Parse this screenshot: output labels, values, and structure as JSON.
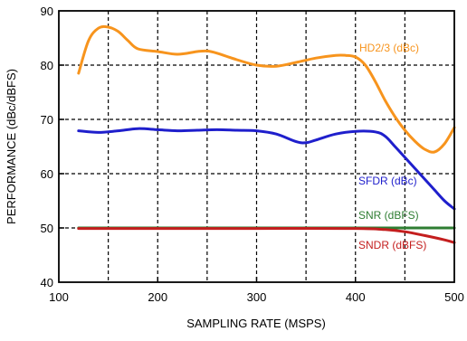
{
  "chart_data": {
    "type": "line",
    "title": "",
    "xlabel": "SAMPLING RATE (MSPS)",
    "ylabel": "PERFORMANCE (dBc/dBFS)",
    "xlim": [
      100,
      500
    ],
    "ylim": [
      40,
      90
    ],
    "xticks": [
      100,
      200,
      300,
      400,
      500
    ],
    "yticks": [
      40,
      50,
      60,
      70,
      80,
      90
    ],
    "grid": "dashed",
    "legend": "inline labels",
    "series": [
      {
        "name": "HD2/3 (dBc)",
        "color": "#f7941d",
        "x": [
          120,
          130,
          140,
          150,
          160,
          170,
          180,
          200,
          220,
          240,
          250,
          260,
          280,
          300,
          320,
          340,
          360,
          380,
          390,
          400,
          410,
          420,
          430,
          440,
          450,
          460,
          470,
          480,
          490,
          500
        ],
        "y": [
          78.5,
          84.5,
          86.8,
          87.0,
          86.2,
          84.5,
          83.0,
          82.5,
          82.0,
          82.5,
          82.6,
          82.2,
          81.0,
          80.0,
          79.8,
          80.5,
          81.3,
          81.8,
          81.8,
          81.5,
          80.0,
          77.0,
          73.5,
          70.5,
          68.0,
          66.0,
          64.5,
          64.0,
          65.5,
          68.5
        ]
      },
      {
        "name": "SFDR (dBc)",
        "color": "#1f1fcc",
        "x": [
          120,
          140,
          160,
          180,
          200,
          220,
          240,
          260,
          280,
          300,
          320,
          340,
          350,
          360,
          380,
          400,
          420,
          430,
          440,
          450,
          460,
          470,
          480,
          490,
          500
        ],
        "y": [
          67.9,
          67.6,
          67.9,
          68.3,
          68.1,
          67.9,
          68.0,
          68.1,
          68.0,
          67.9,
          67.3,
          65.9,
          65.7,
          66.2,
          67.3,
          67.8,
          67.7,
          66.9,
          65.0,
          63.0,
          61.0,
          59.0,
          57.0,
          55.0,
          53.5
        ]
      },
      {
        "name": "SNR (dBFS)",
        "color": "#2e7d32",
        "x": [
          120,
          200,
          300,
          400,
          450,
          500
        ],
        "y": [
          50.0,
          50.0,
          50.0,
          50.0,
          50.0,
          50.0
        ]
      },
      {
        "name": "SNDR (dBFS)",
        "color": "#c41e1e",
        "x": [
          120,
          200,
          300,
          400,
          430,
          450,
          470,
          490,
          500
        ],
        "y": [
          49.9,
          49.9,
          49.9,
          49.9,
          49.7,
          49.3,
          48.6,
          47.8,
          47.3
        ]
      }
    ]
  }
}
